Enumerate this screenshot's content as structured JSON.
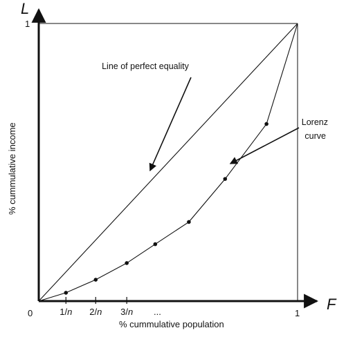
{
  "chart_data": {
    "type": "line",
    "x_axis_letter": "L",
    "y_axis_letter": "F",
    "xlabel": "% cummulative  population",
    "ylabel": "% cummulative  income",
    "xlim": [
      0,
      1
    ],
    "ylim": [
      0,
      1
    ],
    "origin_label": "0",
    "x_ticks": [
      {
        "x": 0.105,
        "label": "1/",
        "label_italic": "n"
      },
      {
        "x": 0.22,
        "label": "2/",
        "label_italic": "n"
      },
      {
        "x": 0.34,
        "label": "3/",
        "label_italic": "n"
      }
    ],
    "x_ellipsis": "...",
    "x_end_label": "1",
    "y_end_label": "1",
    "series": [
      {
        "name": "Line of perfect equality",
        "points": [
          [
            0,
            0
          ],
          [
            1,
            1
          ]
        ],
        "markers": false
      },
      {
        "name": "Lorenz curve",
        "points": [
          [
            0,
            0
          ],
          [
            0.105,
            0.03
          ],
          [
            0.22,
            0.077
          ],
          [
            0.34,
            0.137
          ],
          [
            0.45,
            0.205
          ],
          [
            0.58,
            0.285
          ],
          [
            0.72,
            0.44
          ],
          [
            0.88,
            0.638
          ],
          [
            1,
            1
          ]
        ],
        "markers": true
      }
    ],
    "annotations": [
      {
        "text": "Line of perfect equality",
        "lines": [
          "Line of perfect equality"
        ],
        "target": [
          0.43,
          0.47
        ]
      },
      {
        "text": "Lorenz curve",
        "lines": [
          "Lorenz",
          "curve"
        ],
        "target": [
          0.74,
          0.495
        ]
      }
    ]
  }
}
